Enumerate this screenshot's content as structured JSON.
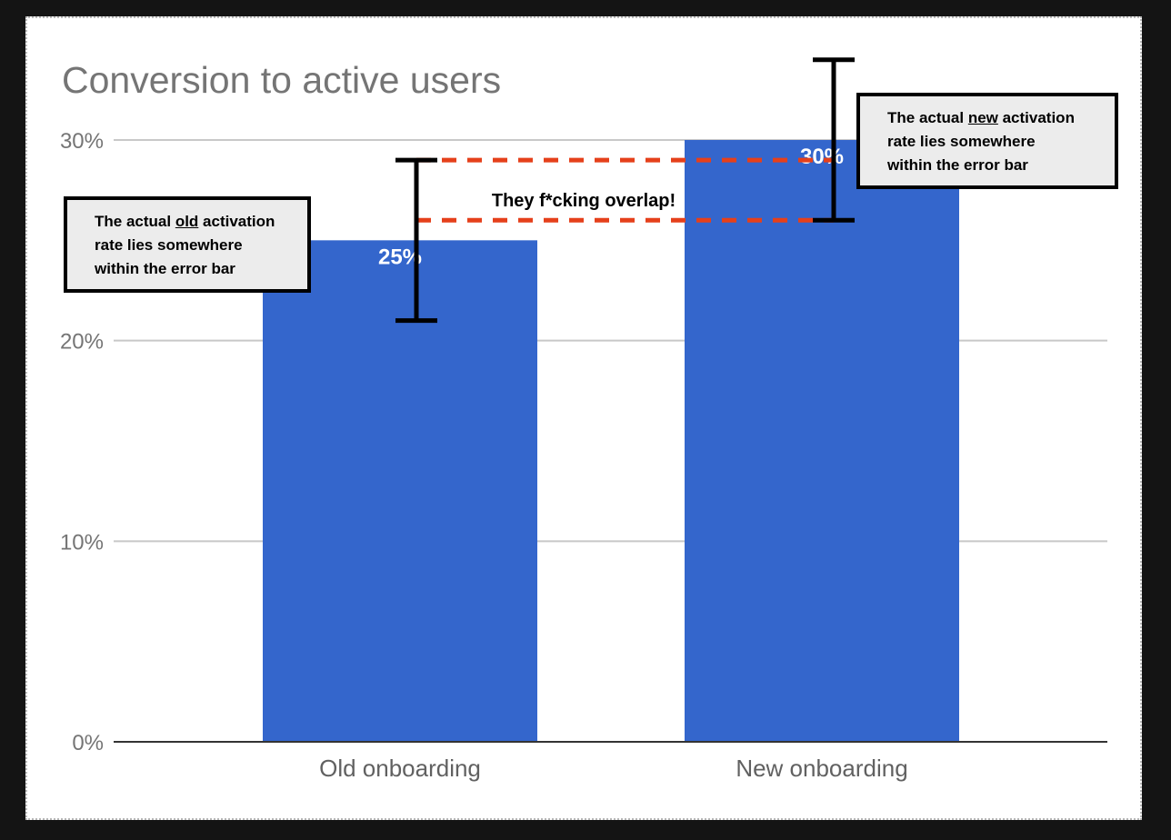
{
  "chart_data": {
    "type": "bar",
    "title": "Conversion to active users",
    "categories": [
      "Old onboarding",
      "New onboarding"
    ],
    "values": [
      25,
      30
    ],
    "data_labels": [
      "25%",
      "30%"
    ],
    "error_bars": [
      {
        "low": 21,
        "high": 29
      },
      {
        "low": 26,
        "high": 34
      }
    ],
    "y_ticks": [
      0,
      10,
      20,
      30
    ],
    "y_tick_labels": [
      "0%",
      "10%",
      "20%",
      "30%"
    ],
    "ylim": [
      0,
      30
    ],
    "grid": true,
    "xlabel": "",
    "ylabel": "",
    "bar_color": "#3466cc",
    "annotations": {
      "overlap_text": "They f*cking overlap!",
      "overlap_range": [
        26,
        29
      ],
      "overlap_line_color": "#e5401b",
      "old_note": {
        "line1_pre": "The actual ",
        "line1_em": "old",
        "line1_post": " activation",
        "line2": "rate lies somewhere",
        "line3": "within the error bar"
      },
      "new_note": {
        "line1_pre": "The actual ",
        "line1_em": "new",
        "line1_post": " activation",
        "line2": "rate lies somewhere",
        "line3": "within the error bar"
      }
    }
  }
}
